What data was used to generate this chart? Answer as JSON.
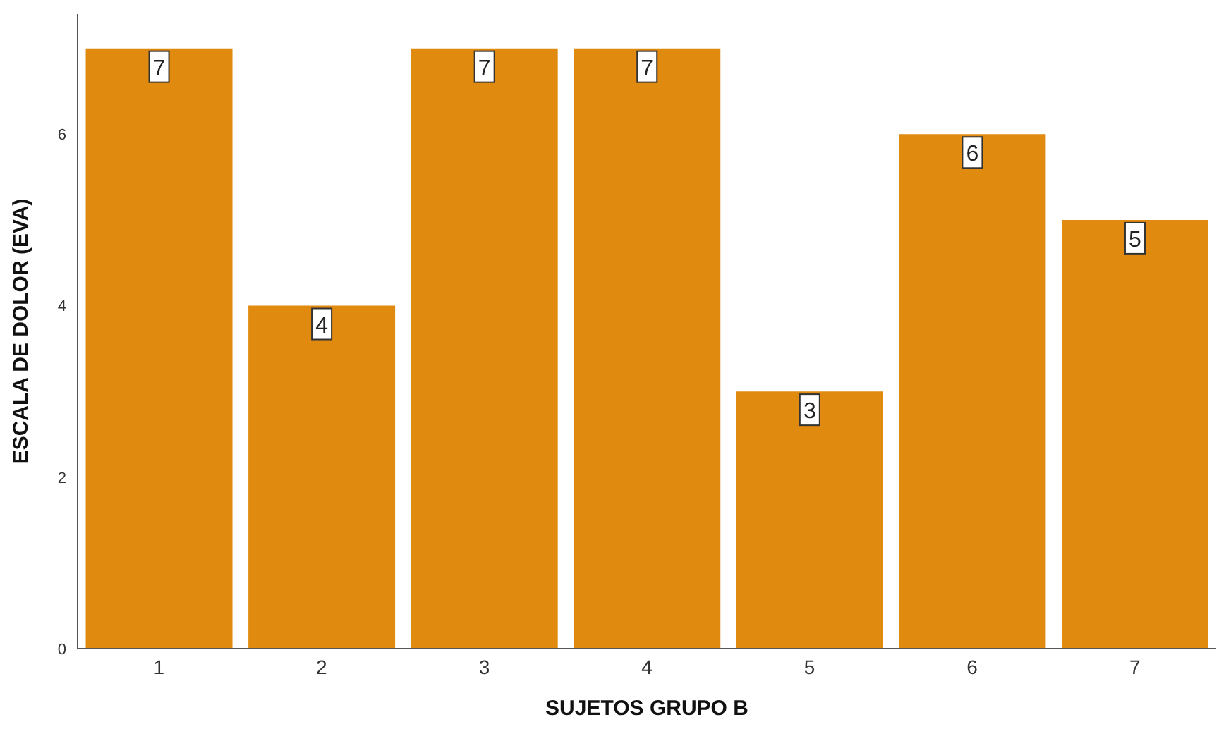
{
  "chart_data": {
    "type": "bar",
    "xlabel": "SUJETOS GRUPO B",
    "ylabel": "ESCALA DE DOLOR (EVA)",
    "categories": [
      "1",
      "2",
      "3",
      "4",
      "5",
      "6",
      "7"
    ],
    "values": [
      7,
      4,
      7,
      7,
      3,
      6,
      5
    ],
    "color": "#e08a10",
    "ylim": [
      0,
      7.4
    ],
    "yticks": [
      0,
      2,
      4,
      6
    ],
    "grid": false,
    "legend": false,
    "data_labels": true
  }
}
